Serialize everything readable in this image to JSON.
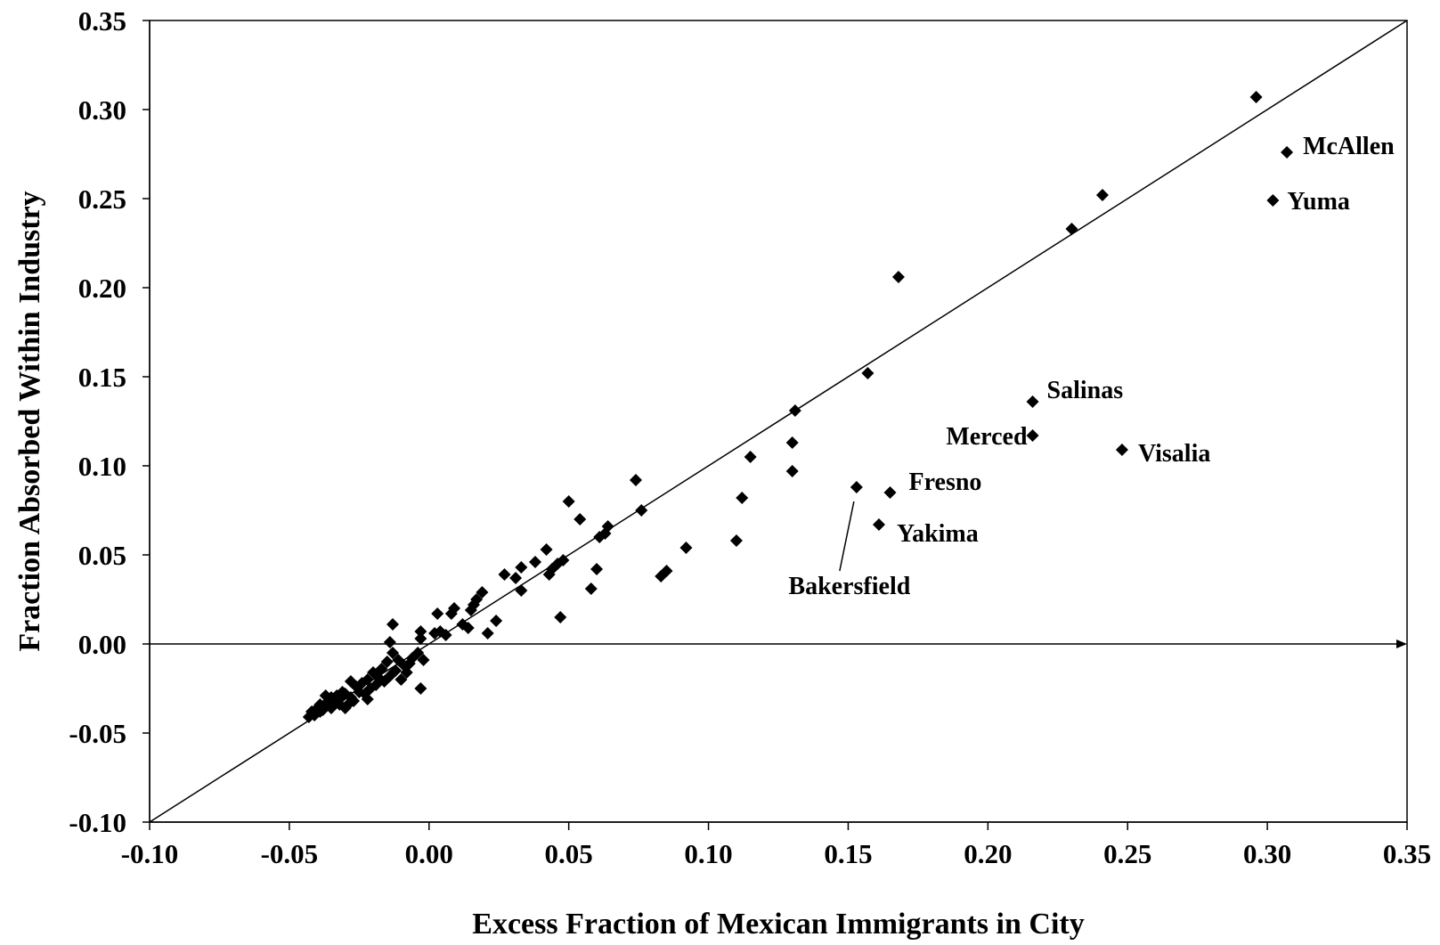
{
  "chart_data": {
    "type": "scatter",
    "title": "",
    "xlabel": "Excess Fraction of Mexican Immigrants in City",
    "ylabel": "Fraction Absorbed Within Industry",
    "xlim": [
      -0.1,
      0.35
    ],
    "ylim": [
      -0.1,
      0.35
    ],
    "x_ticks": [
      "-0.10",
      "-0.05",
      "0.00",
      "0.05",
      "0.10",
      "0.15",
      "0.20",
      "0.25",
      "0.30",
      "0.35"
    ],
    "y_ticks": [
      "-0.10",
      "-0.05",
      "0.00",
      "0.05",
      "0.10",
      "0.15",
      "0.20",
      "0.25",
      "0.30",
      "0.35"
    ],
    "grid": false,
    "reference_line": {
      "type": "45-degree line",
      "slope": 1,
      "intercept": 0
    },
    "marker": "diamond",
    "color": "#000000",
    "labeled_points": [
      {
        "name": "McAllen",
        "x": 0.307,
        "y": 0.276
      },
      {
        "name": "Yuma",
        "x": 0.302,
        "y": 0.249
      },
      {
        "name": "Salinas",
        "x": 0.216,
        "y": 0.136
      },
      {
        "name": "Merced",
        "x": 0.216,
        "y": 0.117
      },
      {
        "name": "Visalia",
        "x": 0.248,
        "y": 0.109
      },
      {
        "name": "Fresno",
        "x": 0.165,
        "y": 0.085
      },
      {
        "name": "Bakersfield",
        "x": 0.153,
        "y": 0.088
      },
      {
        "name": "Yakima",
        "x": 0.161,
        "y": 0.067
      }
    ],
    "points": [
      [
        0.296,
        0.307
      ],
      [
        0.241,
        0.252
      ],
      [
        0.23,
        0.233
      ],
      [
        0.168,
        0.206
      ],
      [
        0.157,
        0.152
      ],
      [
        0.131,
        0.131
      ],
      [
        0.13,
        0.113
      ],
      [
        0.13,
        0.097
      ],
      [
        0.115,
        0.105
      ],
      [
        0.112,
        0.082
      ],
      [
        0.11,
        0.058
      ],
      [
        0.092,
        0.054
      ],
      [
        0.085,
        0.041
      ],
      [
        0.083,
        0.038
      ],
      [
        0.076,
        0.075
      ],
      [
        0.074,
        0.092
      ],
      [
        0.064,
        0.066
      ],
      [
        0.063,
        0.062
      ],
      [
        0.061,
        0.06
      ],
      [
        0.06,
        0.042
      ],
      [
        0.058,
        0.031
      ],
      [
        0.054,
        0.07
      ],
      [
        0.05,
        0.08
      ],
      [
        0.048,
        0.047
      ],
      [
        0.047,
        0.015
      ],
      [
        0.046,
        0.045
      ],
      [
        0.044,
        0.042
      ],
      [
        0.043,
        0.039
      ],
      [
        0.042,
        0.053
      ],
      [
        0.038,
        0.046
      ],
      [
        0.033,
        0.043
      ],
      [
        0.033,
        0.03
      ],
      [
        0.031,
        0.037
      ],
      [
        0.027,
        0.039
      ],
      [
        0.024,
        0.013
      ],
      [
        0.021,
        0.006
      ],
      [
        0.019,
        0.029
      ],
      [
        0.017,
        0.025
      ],
      [
        0.016,
        0.022
      ],
      [
        0.015,
        0.019
      ],
      [
        0.014,
        0.009
      ],
      [
        0.012,
        0.011
      ],
      [
        0.009,
        0.02
      ],
      [
        0.008,
        0.017
      ],
      [
        0.006,
        0.005
      ],
      [
        0.004,
        0.007
      ],
      [
        0.003,
        0.017
      ],
      [
        0.002,
        0.006
      ],
      [
        -0.003,
        0.007
      ],
      [
        -0.003,
        0.003
      ],
      [
        -0.002,
        -0.009
      ],
      [
        -0.003,
        -0.025
      ],
      [
        -0.004,
        -0.005
      ],
      [
        -0.006,
        -0.008
      ],
      [
        -0.007,
        -0.011
      ],
      [
        -0.008,
        -0.016
      ],
      [
        -0.009,
        -0.012
      ],
      [
        -0.01,
        -0.02
      ],
      [
        -0.011,
        -0.009
      ],
      [
        -0.012,
        -0.015
      ],
      [
        -0.013,
        -0.005
      ],
      [
        -0.013,
        0.011
      ],
      [
        -0.014,
        0.001
      ],
      [
        -0.014,
        -0.018
      ],
      [
        -0.015,
        -0.01
      ],
      [
        -0.016,
        -0.021
      ],
      [
        -0.017,
        -0.014
      ],
      [
        -0.018,
        -0.019
      ],
      [
        -0.019,
        -0.023
      ],
      [
        -0.02,
        -0.016
      ],
      [
        -0.021,
        -0.025
      ],
      [
        -0.022,
        -0.031
      ],
      [
        -0.022,
        -0.02
      ],
      [
        -0.023,
        -0.028
      ],
      [
        -0.024,
        -0.022
      ],
      [
        -0.025,
        -0.027
      ],
      [
        -0.026,
        -0.024
      ],
      [
        -0.027,
        -0.032
      ],
      [
        -0.028,
        -0.021
      ],
      [
        -0.028,
        -0.03
      ],
      [
        -0.029,
        -0.034
      ],
      [
        -0.03,
        -0.028
      ],
      [
        -0.03,
        -0.036
      ],
      [
        -0.031,
        -0.027
      ],
      [
        -0.032,
        -0.031
      ],
      [
        -0.032,
        -0.034
      ],
      [
        -0.033,
        -0.029
      ],
      [
        -0.034,
        -0.033
      ],
      [
        -0.035,
        -0.03
      ],
      [
        -0.035,
        -0.036
      ],
      [
        -0.036,
        -0.032
      ],
      [
        -0.037,
        -0.035
      ],
      [
        -0.037,
        -0.029
      ],
      [
        -0.038,
        -0.037
      ],
      [
        -0.039,
        -0.034
      ],
      [
        -0.039,
        -0.038
      ],
      [
        -0.04,
        -0.036
      ],
      [
        -0.041,
        -0.04
      ],
      [
        -0.042,
        -0.038
      ],
      [
        -0.043,
        -0.041
      ]
    ]
  }
}
